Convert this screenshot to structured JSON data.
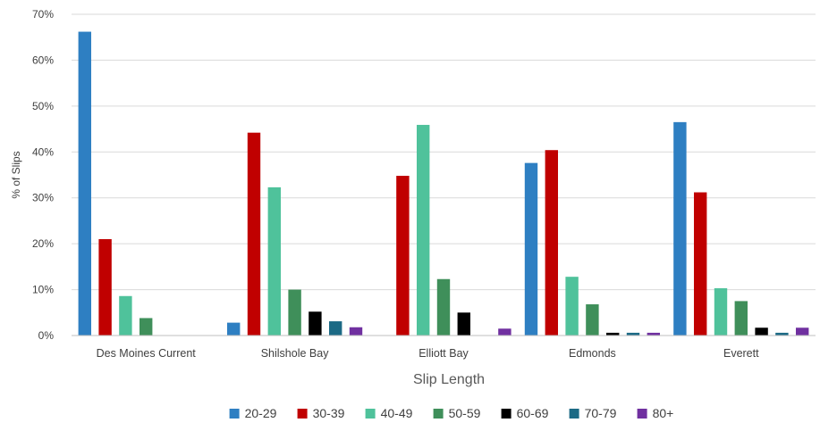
{
  "chart_data": {
    "type": "bar",
    "title": "",
    "xlabel": "Slip Length",
    "ylabel": "% of Slips",
    "ylim": [
      0,
      70
    ],
    "yticks": [
      0,
      10,
      20,
      30,
      40,
      50,
      60,
      70
    ],
    "ytick_suffix": "%",
    "grid": true,
    "legend_position": "bottom",
    "categories": [
      "Des Moines Current",
      "Shilshole Bay",
      "Elliott Bay",
      "Edmonds",
      "Everett"
    ],
    "series": [
      {
        "name": "20-29",
        "color": "#2e7fc2",
        "values": [
          66.2,
          2.8,
          0,
          37.6,
          46.5
        ]
      },
      {
        "name": "30-39",
        "color": "#c00000",
        "values": [
          21.0,
          44.2,
          34.8,
          40.4,
          31.2
        ]
      },
      {
        "name": "40-49",
        "color": "#4fc29b",
        "values": [
          8.6,
          32.3,
          45.9,
          12.8,
          10.3
        ]
      },
      {
        "name": "50-59",
        "color": "#3f8f5a",
        "values": [
          3.8,
          10.0,
          12.3,
          6.8,
          7.5
        ]
      },
      {
        "name": "60-69",
        "color": "#000000",
        "values": [
          0,
          5.2,
          5.0,
          0.6,
          1.7
        ]
      },
      {
        "name": "70-79",
        "color": "#1c6a85",
        "values": [
          0,
          3.1,
          0,
          0.6,
          0.6
        ]
      },
      {
        "name": "80+",
        "color": "#7030a0",
        "values": [
          0,
          1.8,
          1.5,
          0.6,
          1.7
        ]
      }
    ]
  }
}
